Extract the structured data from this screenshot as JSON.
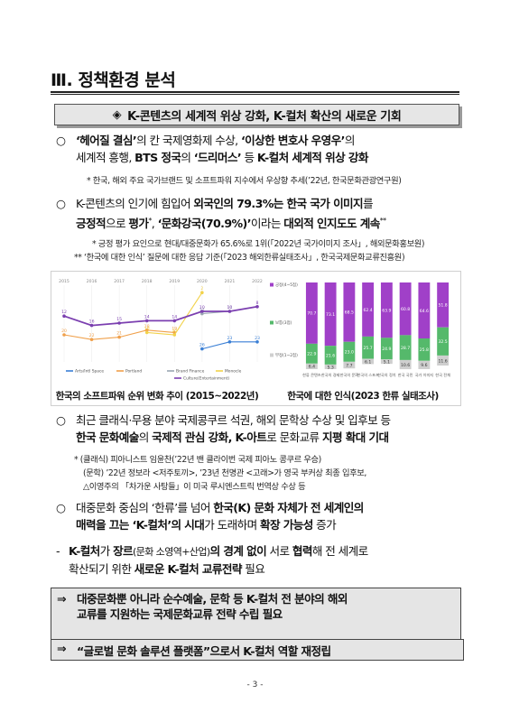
{
  "section": {
    "number": "Ⅲ.",
    "title": "정책환경 분석"
  },
  "banner": {
    "marker": "◈",
    "text": "K-콘텐츠의 세계적 위상 강화, K-컬처 확산의 새로운 기회"
  },
  "p1": {
    "mark": "○",
    "a": "‘헤어질 결심’",
    "b": "의 칸 국제영화제 수상, ",
    "c": "‘이상한 변호사 우영우’",
    "d": "의",
    "e": "세계적 흥행, ",
    "f": "BTS 정국",
    "g": "의 ",
    "h": "‘드리머스’",
    "i": " 등 ",
    "j": "K-컬처 세계적 위상 강화"
  },
  "note1": "* 한국, 해외 주요 국가브랜드 및 소프트파워 지수에서 우상향 추세(’22년, 한국문화관광연구원)",
  "p2": {
    "mark": "○",
    "a": "K-콘텐츠의 인기에 힘입어 ",
    "b": "외국인의 79.3%는 한국 국가 이미지",
    "c": "를",
    "d": "긍정적",
    "e": "으로 ",
    "f": "평가",
    "g": "*",
    "h": ", ",
    "i": "‘문화강국(70.9%)’",
    "j": "이라는 ",
    "k": "대외적 인지도도 계속",
    "l": "**"
  },
  "note2a": "* 긍정 평가 요인으로 현대/대중문화가 65.6%로 1위(「2022년 국가이미지 조사」, 해외문화홍보원)",
  "note2b": "** ‘한국에 대한 인식’ 질문에 대한 응답 기준(「2023 해외한류실태조사」, 한국국제문화교류진흥원)",
  "captions": {
    "left": "한국의 소프트파워 순위 변화 추이 (2015~2022년)",
    "right": "한국에 대한 인식(2023 한류 실태조사)"
  },
  "chart_data": [
    {
      "type": "line",
      "title": "",
      "x": [
        "2015",
        "2016",
        "2017",
        "2018",
        "2019",
        "2020",
        "2021",
        "2022"
      ],
      "series": [
        {
          "name": "Arts/Intl Space",
          "values": [
            null,
            null,
            null,
            null,
            null,
            26,
            23,
            23
          ]
        },
        {
          "name": "Portland",
          "values": [
            20,
            22,
            21,
            18,
            19,
            null,
            null,
            null
          ]
        },
        {
          "name": "Brand Finance",
          "values": [
            null,
            null,
            null,
            null,
            null,
            11,
            10,
            null
          ]
        },
        {
          "name": "Monocle",
          "values": [
            null,
            null,
            null,
            19,
            20,
            2,
            null,
            null
          ]
        },
        {
          "name": "Culture(Entertainment)",
          "values": [
            12,
            16,
            15,
            14,
            14,
            10,
            10,
            8
          ]
        }
      ],
      "colors": {
        "Arts/Intl Space": "#3a7fd5",
        "Portland": "#f0a04b",
        "Brand Finance": "#9aa6b2",
        "Monocle": "#f2d24a",
        "Culture(Entertainment)": "#7b3fb0"
      }
    },
    {
      "type": "bar",
      "title": "",
      "categories": [
        "한류 콘텐츠",
        "한국의 경제",
        "한국의 문화",
        "한국의 스포츠",
        "한국의 정치",
        "한국 국민",
        "국가 이미지",
        "한국 전체"
      ],
      "series": [
        {
          "name": "긍정(4~5점)",
          "values": [
            70.7,
            73.1,
            68.5,
            62.4,
            63.9,
            60.8,
            64.6,
            51.8
          ]
        },
        {
          "name": "보통(3점)",
          "values": [
            22.9,
            21.6,
            23.0,
            25.7,
            24.9,
            28.7,
            25.8,
            32.5
          ]
        },
        {
          "name": "부정(1~2점)",
          "values": [
            6.4,
            5.3,
            7.7,
            6.1,
            5.1,
            10.6,
            9.6,
            11.6
          ]
        }
      ],
      "colors": {
        "긍정(4~5점)": "#a040c8",
        "보통(3점)": "#55b96b",
        "부정(1~2점)": "#cfcfcf"
      }
    }
  ],
  "p3": {
    "mark": "○",
    "a": "최근 클래식·무용 분야 국제콩쿠르 석권, 해외 문학상 수상 및 입후보 등",
    "b": "한국 문화예술",
    "c": "의 ",
    "d": "국제적 관심 강화, K-아트",
    "e": "로 문화교류 ",
    "f": "지평 확대 기대"
  },
  "note3a": "* (클래식) 피아니스트 임윤찬(’22년 밴 클라이번 국제 피아노 콩쿠르 우승)",
  "note3b": "(문학) ’22년 정보라 <저주토끼>, ’23년 천명관 <고래>가 영국 부커상 최종 입후보,",
  "note3c": "△이영주의 「차가운 사탕들」이 미국 루시엔스트릭 번역상 수상 등",
  "p4": {
    "mark": "○",
    "a": "대중문화 중심의 ‘한류’를 넘어 ",
    "b": "한국(K) 문화 자체가 전 세계인의",
    "c": "매력을 끄는 ‘K-컬처’의 시대",
    "d": "가 도래하며 ",
    "e": "확장 가능성",
    "f": " 증가"
  },
  "p5": {
    "mark": "-",
    "a": "K-컬처",
    "b": "가 ",
    "c": "장르",
    "d": "(문화 소영역+산업)",
    "e": "의 경계 없이",
    "f": " 서로 ",
    "g": "협력",
    "h": "해 전 세계로",
    "i": "확산되기 위한 ",
    "j": "새로운 K-컬처 교류전략",
    "k": " 필요"
  },
  "conclusions": [
    {
      "arrow": "⇒",
      "line1": "대중문화뿐 아니라 순수예술, 문학 등 K-컬처 전 분야의 해외",
      "line2": "교류를 지원하는 국제문화교류 전략 수립 필요"
    },
    {
      "arrow": "⇒",
      "line1": "“글로벌 문화 솔루션 플랫폼”으로서 K-컬처 역할 재정립"
    }
  ],
  "page_number": "- 3 -"
}
